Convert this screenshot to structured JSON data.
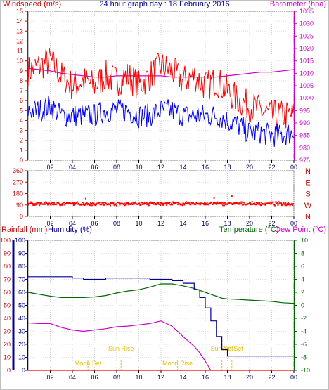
{
  "chart_data": [
    {
      "type": "line",
      "title": "24 hour graph day : 18 February 2016",
      "ylabel": "Windspeed (m/s)",
      "y2label": "Barometer (hpa)",
      "x_ticks": [
        "02",
        "04",
        "06",
        "08",
        "10",
        "12",
        "14",
        "16",
        "18",
        "20",
        "22",
        "00"
      ],
      "ylim": [
        0,
        15
      ],
      "y_ticks": [
        0,
        1,
        2,
        3,
        4,
        5,
        6,
        7,
        8,
        9,
        10,
        11,
        12,
        13,
        14,
        15
      ],
      "y2lim": [
        975,
        1035
      ],
      "y2_ticks": [
        975,
        980,
        985,
        990,
        995,
        1000,
        1005,
        1010,
        1015,
        1020,
        1025,
        1030,
        1035
      ],
      "x_hours": [
        0,
        1,
        2,
        3,
        4,
        5,
        6,
        7,
        8,
        9,
        10,
        11,
        12,
        13,
        14,
        15,
        16,
        17,
        18,
        19,
        20,
        21,
        22,
        23,
        24
      ],
      "series": [
        {
          "role": "gust",
          "color": "#ff0000",
          "axis": "left",
          "values": [
            9.0,
            9.5,
            10.0,
            8.5,
            7.5,
            8.0,
            7.5,
            8.5,
            8.0,
            8.5,
            7.5,
            8.5,
            9.5,
            9.0,
            8.0,
            8.5,
            7.5,
            8.0,
            7.0,
            6.0,
            5.5,
            5.0,
            4.5,
            4.5,
            4.5
          ]
        },
        {
          "role": "average",
          "color": "#0000ff",
          "axis": "left",
          "values": [
            5.0,
            5.0,
            5.5,
            4.5,
            4.5,
            4.5,
            4.5,
            5.0,
            5.0,
            5.0,
            4.5,
            4.5,
            5.0,
            5.0,
            4.5,
            4.5,
            4.5,
            4.5,
            4.0,
            3.5,
            2.8,
            2.8,
            2.5,
            2.5,
            2.8
          ]
        },
        {
          "role": "barometer",
          "color": "#cc00cc",
          "axis": "right",
          "values": [
            1012,
            1011.5,
            1011,
            1010,
            1009.5,
            1009,
            1008.5,
            1008.5,
            1009,
            1009,
            1009,
            1009,
            1009,
            1008.5,
            1008.5,
            1008.5,
            1008.5,
            1008.5,
            1009,
            1009.5,
            1010,
            1010.5,
            1010.5,
            1011,
            1011.5
          ]
        }
      ]
    },
    {
      "type": "scatter",
      "ylim": [
        0,
        360
      ],
      "y_ticks": [
        0,
        90,
        180,
        270,
        360
      ],
      "y2_ticks": [
        "N",
        "W",
        "S",
        "E",
        "N"
      ],
      "x_ticks": [
        "02",
        "04",
        "06",
        "08",
        "10",
        "12",
        "14",
        "16",
        "18",
        "20",
        "22",
        "00"
      ],
      "series": [
        {
          "role": "direction",
          "color": "#ff0000",
          "mean": 100,
          "spread": 16
        }
      ],
      "outliers": [
        {
          "x": 18.4,
          "y": 160
        },
        {
          "x": 16.8,
          "y": 145
        },
        {
          "x": 5.2,
          "y": 140
        }
      ]
    },
    {
      "type": "line",
      "ylabel": "Rainfall (mm)",
      "y_secondary_label": "Humidity (%)",
      "y2label": "Temperature (°C)",
      "y2_secondary_label": "Dew Point (°C)",
      "ylim": [
        0,
        100
      ],
      "y_ticks": [
        0,
        10,
        20,
        30,
        40,
        50,
        60,
        70,
        80,
        90,
        100
      ],
      "y2lim": [
        -10,
        10
      ],
      "y2_ticks": [
        -10,
        -8,
        -6,
        -4,
        -2,
        0,
        2,
        4,
        6,
        8,
        10
      ],
      "x_ticks": [
        "02",
        "04",
        "06",
        "08",
        "10",
        "12",
        "14",
        "16",
        "18",
        "20",
        "22",
        "00"
      ],
      "x_hours": [
        0,
        1,
        2,
        3,
        4,
        5,
        6,
        7,
        8,
        9,
        10,
        11,
        12,
        13,
        14,
        15,
        15.5,
        16,
        16.5,
        17,
        17.5,
        18,
        19,
        20,
        21,
        22,
        23,
        24
      ],
      "series": [
        {
          "role": "humidity",
          "color": "#000099",
          "axis": "left",
          "values": [
            72,
            72,
            72,
            72,
            71,
            70,
            70,
            71,
            71,
            71,
            71,
            70,
            70,
            69,
            67,
            62,
            56,
            48,
            38,
            26,
            16,
            11,
            11,
            11,
            11,
            11,
            11,
            11
          ]
        },
        {
          "role": "temperature",
          "color": "#006600",
          "axis": "right",
          "values": [
            2.0,
            1.7,
            1.4,
            1.2,
            1.2,
            1.2,
            1.3,
            1.5,
            1.9,
            2.2,
            2.4,
            2.8,
            3.3,
            3.3,
            3.0,
            2.6,
            2.3,
            2.0,
            1.7,
            1.4,
            1.1,
            1.0,
            0.9,
            0.8,
            0.7,
            0.6,
            0.4,
            0.3
          ]
        },
        {
          "role": "dew_point",
          "color": "#cc00cc",
          "axis": "right",
          "values": [
            -2.7,
            -2.8,
            -2.8,
            -3.4,
            -3.8,
            -4.0,
            -3.8,
            -3.6,
            -3.3,
            -3.2,
            -3.0,
            -2.8,
            -2.4,
            -3.2,
            -4.8,
            -6.3,
            -7.3,
            -8.6,
            -10.0,
            null,
            null,
            null,
            null,
            null,
            null,
            null,
            null,
            null
          ]
        },
        {
          "role": "rainfall",
          "color": "#ff0000",
          "axis": "left",
          "values": [
            0,
            0,
            0,
            0,
            0,
            0,
            0,
            0,
            0,
            0,
            0,
            0,
            0,
            0,
            0,
            0,
            0,
            0,
            0,
            0,
            0,
            0,
            0,
            0,
            0,
            0,
            0,
            0
          ]
        }
      ],
      "annotations": [
        {
          "label": "Moon Set",
          "x": 5.4
        },
        {
          "label": "Sun Rise",
          "x": 8.4
        },
        {
          "label": "Moon Rise",
          "x": 13.5
        },
        {
          "label": "Sun Set",
          "x": 17.5
        },
        {
          "label": "Sun Set",
          "x": 18.4
        }
      ]
    }
  ]
}
